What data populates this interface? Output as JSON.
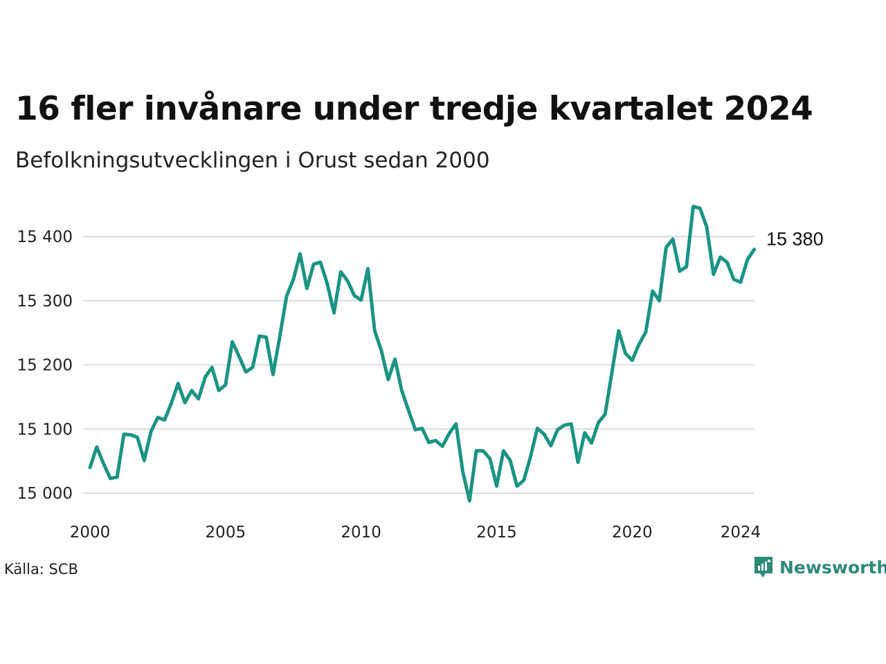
{
  "title": "16 fler invånare under tredje kvartalet 2024",
  "subtitle": "Befolkningsutvecklingen i Orust sedan 2000",
  "source": "Källa: SCB",
  "brand": {
    "name": "Newsworthy",
    "icon": "bar-chart-logo-icon",
    "color": "#2d8a77"
  },
  "chart_data": {
    "type": "line",
    "title": "16 fler invånare under tredje kvartalet 2024",
    "subtitle": "Befolkningsutvecklingen i Orust sedan 2000",
    "xlabel": "",
    "ylabel": "",
    "ylim": [
      14985,
      15465
    ],
    "xlim": [
      2000,
      2024.75
    ],
    "grid": true,
    "line_color": "#1a9483",
    "y_ticks": [
      15000,
      15100,
      15200,
      15300,
      15400
    ],
    "y_tick_labels": [
      "15 000",
      "15 100",
      "15 200",
      "15 300",
      "15 400"
    ],
    "x_ticks": [
      2000,
      2005,
      2010,
      2015,
      2020,
      2024
    ],
    "x_tick_labels": [
      "2000",
      "2005",
      "2010",
      "2015",
      "2020",
      "2024"
    ],
    "end_label": "15 380",
    "series": [
      {
        "x": [
          2000.0,
          2000.25,
          2000.5,
          2000.75,
          2001.0,
          2001.25,
          2001.5,
          2001.75,
          2002.0,
          2002.25,
          2002.5,
          2002.75,
          2003.0,
          2003.25,
          2003.5,
          2003.75,
          2004.0,
          2004.25,
          2004.5,
          2004.75,
          2005.0,
          2005.25,
          2005.5,
          2005.75,
          2006.0,
          2006.25,
          2006.5,
          2006.75,
          2007.0,
          2007.25,
          2007.5,
          2007.75,
          2008.0,
          2008.25,
          2008.5,
          2008.75,
          2009.0,
          2009.25,
          2009.5,
          2009.75,
          2010.0,
          2010.25,
          2010.5,
          2010.75,
          2011.0,
          2011.25,
          2011.5,
          2011.75,
          2012.0,
          2012.25,
          2012.5,
          2012.75,
          2013.0,
          2013.25,
          2013.5,
          2013.75,
          2014.0,
          2014.25,
          2014.5,
          2014.75,
          2015.0,
          2015.25,
          2015.5,
          2015.75,
          2016.0,
          2016.25,
          2016.5,
          2016.75,
          2017.0,
          2017.25,
          2017.5,
          2017.75,
          2018.0,
          2018.25,
          2018.5,
          2018.75,
          2019.0,
          2019.25,
          2019.5,
          2019.75,
          2020.0,
          2020.25,
          2020.5,
          2020.75,
          2021.0,
          2021.25,
          2021.5,
          2021.75,
          2022.0,
          2022.25,
          2022.5,
          2022.75,
          2023.0,
          2023.25,
          2023.5,
          2023.75,
          2024.0,
          2024.25,
          2024.5
        ],
        "values": [
          15040,
          15072,
          15046,
          15023,
          15025,
          15092,
          15091,
          15087,
          15051,
          15096,
          15118,
          15114,
          15140,
          15171,
          15141,
          15160,
          15147,
          15181,
          15196,
          15160,
          15169,
          15236,
          15213,
          15189,
          15196,
          15245,
          15243,
          15185,
          15244,
          15307,
          15333,
          15373,
          15319,
          15357,
          15360,
          15327,
          15281,
          15345,
          15331,
          15308,
          15301,
          15350,
          15253,
          15222,
          15177,
          15209,
          15160,
          15129,
          15099,
          15101,
          15079,
          15082,
          15073,
          15093,
          15108,
          15034,
          14988,
          15066,
          15066,
          15054,
          15011,
          15066,
          15051,
          15011,
          15020,
          15057,
          15101,
          15092,
          15074,
          15099,
          15106,
          15108,
          15048,
          15094,
          15078,
          15110,
          15123,
          15188,
          15253,
          15218,
          15207,
          15232,
          15251,
          15315,
          15300,
          15383,
          15396,
          15346,
          15353,
          15447,
          15444,
          15415,
          15341,
          15368,
          15360,
          15333,
          15329,
          15364,
          15380
        ]
      }
    ]
  }
}
